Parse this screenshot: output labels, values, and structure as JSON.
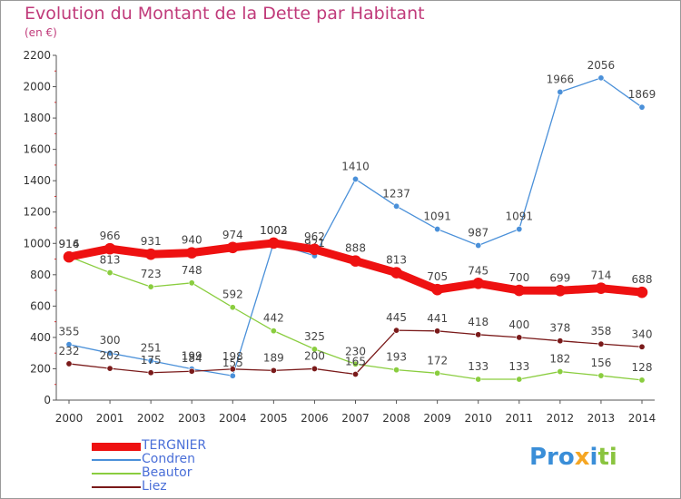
{
  "title": "Evolution du Montant de la Dette par Habitant",
  "subtitle": "(en €)",
  "logo": "Proxiti",
  "chart_data": {
    "type": "line",
    "title": "Evolution du Montant de la Dette par Habitant",
    "ylabel": "(en €)",
    "xlabel": "",
    "x": [
      "2000",
      "2001",
      "2002",
      "2003",
      "2004",
      "2005",
      "2006",
      "2007",
      "2008",
      "2009",
      "2010",
      "2011",
      "2012",
      "2013",
      "2014"
    ],
    "ylim": [
      0,
      2200
    ],
    "yticks": [
      0,
      200,
      400,
      600,
      800,
      1000,
      1200,
      1400,
      1600,
      1800,
      2000,
      2200
    ],
    "grid": false,
    "legend_position": "bottom-left",
    "series": [
      {
        "name": "Condren",
        "color": "#4a90d9",
        "values": [
          355,
          300,
          251,
          199,
          155,
          1003,
          921,
          1410,
          1237,
          1091,
          987,
          1091,
          1966,
          2056,
          1869
        ]
      },
      {
        "name": "Beautor",
        "color": "#8acd3f",
        "values": [
          916,
          813,
          723,
          748,
          592,
          442,
          325,
          230,
          193,
          172,
          133,
          133,
          182,
          156,
          128
        ]
      },
      {
        "name": "Liez",
        "color": "#7a1a1a",
        "values": [
          232,
          202,
          175,
          184,
          198,
          189,
          200,
          165,
          445,
          441,
          418,
          400,
          378,
          358,
          340
        ]
      },
      {
        "name": "TERGNIER",
        "color": "#ee1111",
        "values": [
          914,
          966,
          931,
          940,
          974,
          1002,
          962,
          888,
          813,
          705,
          745,
          700,
          699,
          714,
          688
        ]
      }
    ]
  }
}
